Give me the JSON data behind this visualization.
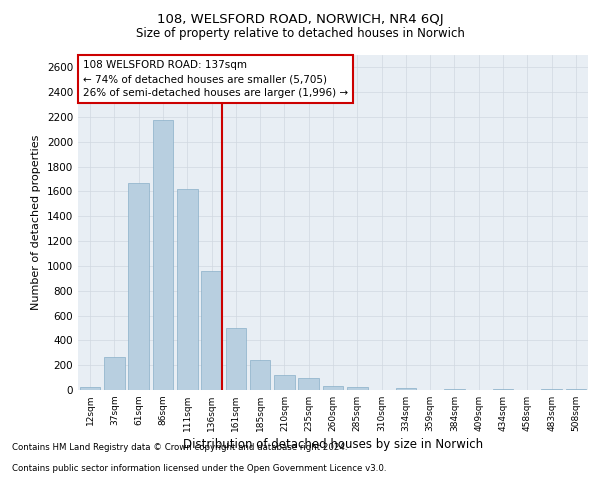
{
  "title_line1": "108, WELSFORD ROAD, NORWICH, NR4 6QJ",
  "title_line2": "Size of property relative to detached houses in Norwich",
  "xlabel": "Distribution of detached houses by size in Norwich",
  "ylabel": "Number of detached properties",
  "footnote1": "Contains HM Land Registry data © Crown copyright and database right 2024.",
  "footnote2": "Contains public sector information licensed under the Open Government Licence v3.0.",
  "annotation_title": "108 WELSFORD ROAD: 137sqm",
  "annotation_line2": "← 74% of detached houses are smaller (5,705)",
  "annotation_line3": "26% of semi-detached houses are larger (1,996) →",
  "bar_color": "#b8cfe0",
  "bar_edge_color": "#8aafc8",
  "marker_color": "#cc0000",
  "categories": [
    "12sqm",
    "37sqm",
    "61sqm",
    "86sqm",
    "111sqm",
    "136sqm",
    "161sqm",
    "185sqm",
    "210sqm",
    "235sqm",
    "260sqm",
    "285sqm",
    "310sqm",
    "334sqm",
    "359sqm",
    "384sqm",
    "409sqm",
    "434sqm",
    "458sqm",
    "483sqm",
    "508sqm"
  ],
  "values": [
    25,
    270,
    1670,
    2180,
    1620,
    960,
    500,
    240,
    120,
    95,
    35,
    28,
    2,
    18,
    2,
    10,
    2,
    12,
    2,
    5,
    8
  ],
  "ylim": [
    0,
    2700
  ],
  "yticks": [
    0,
    200,
    400,
    600,
    800,
    1000,
    1200,
    1400,
    1600,
    1800,
    2000,
    2200,
    2400,
    2600
  ],
  "grid_color": "#d0d8e0",
  "plot_bg_color": "#e8eef4",
  "vline_x": 5.42
}
